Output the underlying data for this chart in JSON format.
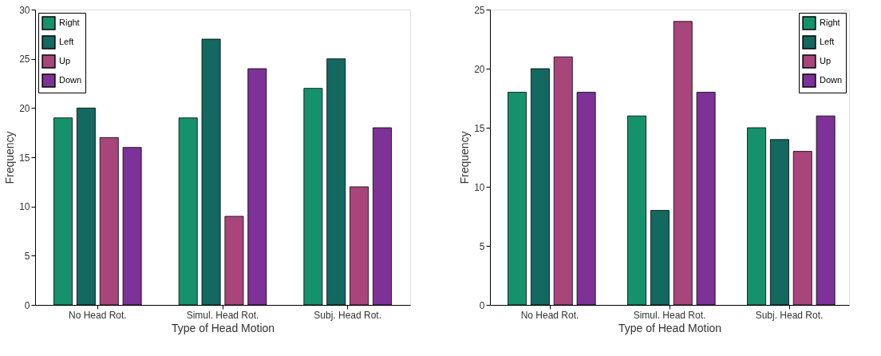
{
  "chart_data": [
    {
      "type": "bar",
      "xlabel": "Type of Head Motion",
      "ylabel": "Frequency",
      "categories": [
        "No Head Rot.",
        "Simul. Head Rot.",
        "Subj. Head Rot."
      ],
      "series": [
        {
          "name": "Right",
          "color": "#15926b",
          "values": [
            19,
            19,
            22
          ]
        },
        {
          "name": "Left",
          "color": "#136860",
          "values": [
            20,
            27,
            25
          ]
        },
        {
          "name": "Up",
          "color": "#a8457a",
          "values": [
            17,
            9,
            12
          ]
        },
        {
          "name": "Down",
          "color": "#7e3196",
          "values": [
            16,
            24,
            18
          ]
        }
      ],
      "ylim": [
        0,
        30
      ],
      "yticks": [
        0,
        5,
        10,
        15,
        20,
        25,
        30
      ],
      "legend": "top left",
      "grid": false
    },
    {
      "type": "bar",
      "xlabel": "Type of Head Motion",
      "ylabel": "Frequency",
      "categories": [
        "No Head Rot.",
        "Simul. Head Rot.",
        "Subj. Head Rot."
      ],
      "series": [
        {
          "name": "Right",
          "color": "#15926b",
          "values": [
            18,
            16,
            15
          ]
        },
        {
          "name": "Left",
          "color": "#136860",
          "values": [
            20,
            8,
            14
          ]
        },
        {
          "name": "Up",
          "color": "#a8457a",
          "values": [
            21,
            24,
            13
          ]
        },
        {
          "name": "Down",
          "color": "#7e3196",
          "values": [
            18,
            18,
            16
          ]
        }
      ],
      "ylim": [
        0,
        25
      ],
      "yticks": [
        0,
        5,
        10,
        15,
        20,
        25
      ],
      "legend": "top right",
      "grid": false
    }
  ]
}
